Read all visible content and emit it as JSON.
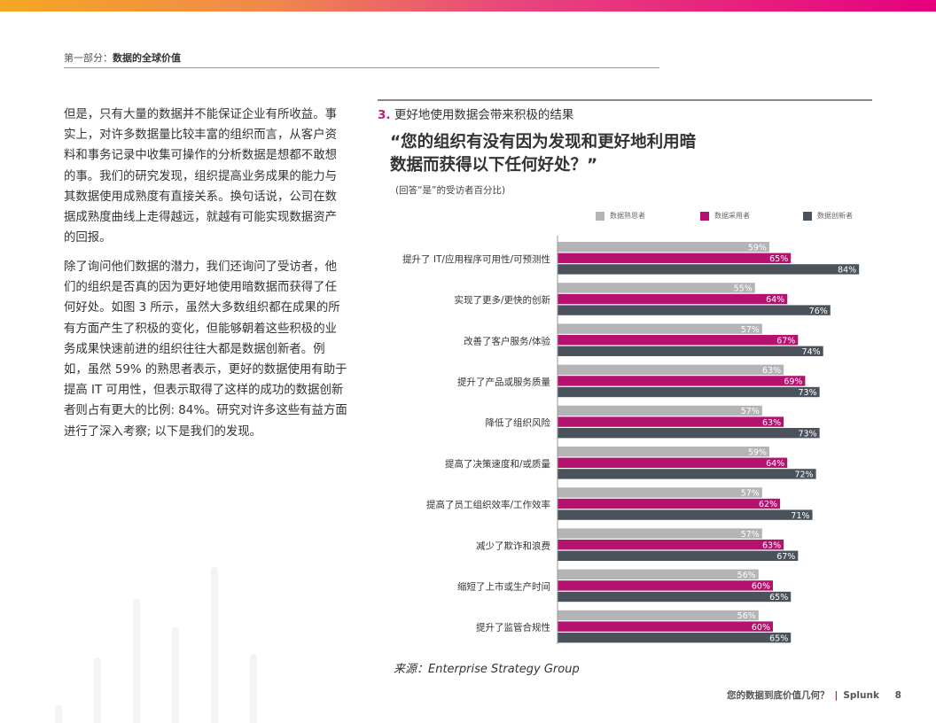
{
  "section_header": {
    "part": "第一部分：",
    "title": "数据的全球价值"
  },
  "body": {
    "para1": "但是，只有大量的数据并不能保证企业有所收益。事实上，对许多数据量比较丰富的组织而言，从客户资料和事务记录中收集可操作的分析数据是想都不敢想的事。我们的研究发现，组织提高业务成果的能力与其数据使用成熟度有直接关系。换句话说，公司在数据成熟度曲线上走得越远，就越有可能实现数据资产的回报。",
    "para2": "除了询问他们数据的潜力，我们还询问了受访者，他们的组织是否真的因为更好地使用暗数据而获得了任何好处。如图 3 所示，虽然大多数组织都在成果的所有方面产生了积极的变化，但能够朝着这些积极的业务成果快速前进的组织往往大都是数据创新者。例如，虽然 59% 的熟思者表示，更好的数据使用有助于提高 IT 可用性，但表示取得了这样的成功的数据创新者则占有更大的比例: 84%。研究对许多这些有益方面进行了深入考察; 以下是我们的发现。"
  },
  "chart_heading": {
    "number": "3.",
    "text": "更好地使用数据会带来积极的结果"
  },
  "chart_question": "“您的组织有没有因为发现和更好地利用暗数据而获得以下任何好处？”",
  "chart_subtitle": "(回答“是”的受访者百分比)",
  "source": "来源：Enterprise Strategy Group",
  "footer": {
    "title": "您的数据到底价值几何？",
    "separator": "|",
    "brand": "Splunk",
    "page": "8"
  },
  "chart_data": {
    "type": "bar",
    "orientation": "horizontal",
    "categories": [
      "提升了 IT/应用程序可用性/可预测性",
      "实现了更多/更快的创新",
      "改善了客户服务/体验",
      "提升了产品或服务质量",
      "降低了组织风险",
      "提高了决策速度和/或质量",
      "提高了员工组织效率/工作效率",
      "减少了欺诈和浪费",
      "缩短了上市或生产时间",
      "提升了监管合规性"
    ],
    "series": [
      {
        "name": "数据熟思者",
        "color": "#b3b4b6",
        "values": [
          59,
          55,
          57,
          63,
          57,
          59,
          57,
          57,
          56,
          56
        ]
      },
      {
        "name": "数据采用者",
        "color": "#b5116f",
        "values": [
          65,
          64,
          67,
          69,
          63,
          64,
          62,
          63,
          60,
          60
        ]
      },
      {
        "name": "数据创新者",
        "color": "#4a535c",
        "values": [
          84,
          76,
          74,
          73,
          73,
          72,
          71,
          67,
          65,
          65
        ]
      }
    ],
    "value_suffix": "%",
    "xlim": [
      0,
      100
    ],
    "grid": false,
    "legend_position": "top"
  }
}
